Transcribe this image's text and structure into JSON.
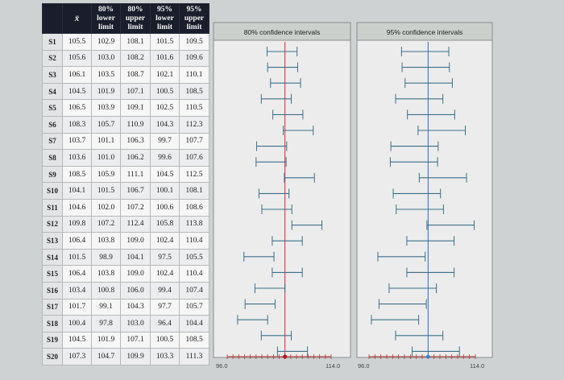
{
  "table": {
    "headers": [
      {
        "line1": "x̄",
        "line2": ""
      },
      {
        "line1": "80%",
        "line2": "lower",
        "line3": "limit"
      },
      {
        "line1": "80%",
        "line2": "upper",
        "line3": "limit"
      },
      {
        "line1": "95%",
        "line2": "lower",
        "line3": "limit"
      },
      {
        "line1": "95%",
        "line2": "upper",
        "line3": "limit"
      }
    ],
    "rows": [
      {
        "name": "S1",
        "cells": [
          "105.5",
          "102.9",
          "108.1",
          "101.5",
          "109.5"
        ]
      },
      {
        "name": "S2",
        "cells": [
          "105.6",
          "103.0",
          "108.2",
          "101.6",
          "109.6"
        ]
      },
      {
        "name": "S3",
        "cells": [
          "106.1",
          "103.5",
          "108.7",
          "102.1",
          "110.1"
        ]
      },
      {
        "name": "S4",
        "cells": [
          "104.5",
          "101.9",
          "107.1",
          "100.5",
          "108.5"
        ]
      },
      {
        "name": "S5",
        "cells": [
          "106.5",
          "103.9",
          "109.1",
          "102.5",
          "110.5"
        ]
      },
      {
        "name": "S6",
        "cells": [
          "108.3",
          "105.7",
          "110.9",
          "104.3",
          "112.3"
        ]
      },
      {
        "name": "S7",
        "cells": [
          "103.7",
          "101.1",
          "106.3",
          "99.7",
          "107.7"
        ]
      },
      {
        "name": "S8",
        "cells": [
          "103.6",
          "101.0",
          "106.2",
          "99.6",
          "107.6"
        ]
      },
      {
        "name": "S9",
        "cells": [
          "108.5",
          "105.9",
          "111.1",
          "104.5",
          "112.5"
        ]
      },
      {
        "name": "S10",
        "cells": [
          "104.1",
          "101.5",
          "106.7",
          "100.1",
          "108.1"
        ]
      },
      {
        "name": "S11",
        "cells": [
          "104.6",
          "102.0",
          "107.2",
          "100.6",
          "108.6"
        ]
      },
      {
        "name": "S12",
        "cells": [
          "109.8",
          "107.2",
          "112.4",
          "105.8",
          "113.8"
        ]
      },
      {
        "name": "S13",
        "cells": [
          "106.4",
          "103.8",
          "109.0",
          "102.4",
          "110.4"
        ]
      },
      {
        "name": "S14",
        "cells": [
          "101.5",
          "98.9",
          "104.1",
          "97.5",
          "105.5"
        ]
      },
      {
        "name": "S15",
        "cells": [
          "106.4",
          "103.8",
          "109.0",
          "102.4",
          "110.4"
        ]
      },
      {
        "name": "S16",
        "cells": [
          "103.4",
          "100.8",
          "106.0",
          "99.4",
          "107.4"
        ]
      },
      {
        "name": "S17",
        "cells": [
          "101.7",
          "99.1",
          "104.3",
          "97.7",
          "105.7"
        ]
      },
      {
        "name": "S18",
        "cells": [
          "100.4",
          "97.8",
          "103.0",
          "96.4",
          "104.4"
        ]
      },
      {
        "name": "S19",
        "cells": [
          "104.5",
          "101.9",
          "107.1",
          "100.5",
          "108.5"
        ]
      },
      {
        "name": "S20",
        "cells": [
          "107.3",
          "104.7",
          "109.9",
          "103.3",
          "111.3"
        ]
      }
    ]
  },
  "chart_data": [
    {
      "type": "interval",
      "title": "80% confidence intervals",
      "xlim": [
        96.0,
        114.0
      ],
      "tick_labels": [
        "96.0",
        "114.0"
      ],
      "reference_x": 106.0,
      "reference_color": "#d0283a",
      "interval_color": "#3d6f86",
      "lower": [
        102.9,
        103.0,
        103.5,
        101.9,
        103.9,
        105.7,
        101.1,
        101.0,
        105.9,
        101.5,
        102.0,
        107.2,
        103.8,
        98.9,
        103.8,
        100.8,
        99.1,
        97.8,
        101.9,
        104.7
      ],
      "upper": [
        108.1,
        108.2,
        108.7,
        107.1,
        109.1,
        110.9,
        106.3,
        106.2,
        111.1,
        106.7,
        107.2,
        112.4,
        109.0,
        104.1,
        109.0,
        106.0,
        104.3,
        103.0,
        107.1,
        109.9
      ]
    },
    {
      "type": "interval",
      "title": "95% confidence intervals",
      "xlim": [
        96.0,
        114.0
      ],
      "tick_labels": [
        "96.0",
        "114.0"
      ],
      "reference_x": 106.0,
      "reference_color": "#2a6fc4",
      "interval_color": "#3d6f86",
      "lower": [
        101.5,
        101.6,
        102.1,
        100.5,
        102.5,
        104.3,
        99.7,
        99.6,
        104.5,
        100.1,
        100.6,
        105.8,
        102.4,
        97.5,
        102.4,
        99.4,
        97.7,
        96.4,
        100.5,
        103.3
      ],
      "upper": [
        109.5,
        109.6,
        110.1,
        108.5,
        110.5,
        112.3,
        107.7,
        107.6,
        112.5,
        108.1,
        108.6,
        113.8,
        110.4,
        105.5,
        110.4,
        107.4,
        105.7,
        104.4,
        108.5,
        111.3
      ]
    }
  ]
}
